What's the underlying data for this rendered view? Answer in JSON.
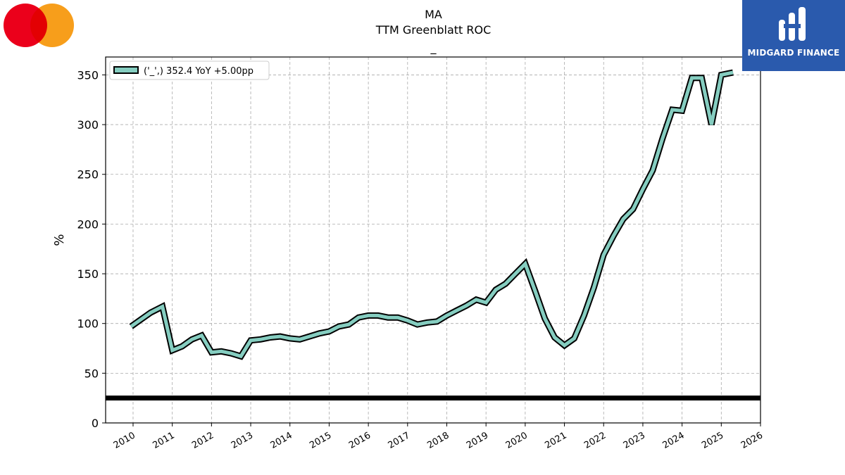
{
  "header": {
    "ticker": "MA",
    "subtitle": "TTM Greenblatt ROC",
    "underscore": "_"
  },
  "brand": {
    "name": "MIDGARD FINANCE",
    "box_color": "#2a5aad",
    "logo_icon": "midgard-finance-logo-icon"
  },
  "company_logo": {
    "icon": "mastercard-logo-icon",
    "left_color": "#eb001b",
    "right_color": "#f79e1b"
  },
  "chart_data": {
    "type": "line",
    "title": "",
    "xlabel": "",
    "ylabel": "%",
    "xlim": [
      2009.3,
      2026.0
    ],
    "ylim": [
      0,
      368
    ],
    "x_ticks": [
      "2010",
      "2011",
      "2012",
      "2013",
      "2014",
      "2015",
      "2016",
      "2017",
      "2018",
      "2019",
      "2020",
      "2021",
      "2022",
      "2023",
      "2024",
      "2025",
      "2026"
    ],
    "y_ticks": [
      "0",
      "50",
      "100",
      "150",
      "200",
      "250",
      "300",
      "350"
    ],
    "grid": true,
    "legend_position": "top-left",
    "reference_line": {
      "y": 25,
      "color": "#000000"
    },
    "series": [
      {
        "name": "('_',) 352.4 YoY +5.00pp",
        "color": "#85cdc0",
        "edge_color": "#000000",
        "x": [
          2009.95,
          2010.2,
          2010.45,
          2010.75,
          2011.0,
          2011.25,
          2011.5,
          2011.75,
          2012.0,
          2012.25,
          2012.5,
          2012.75,
          2013.0,
          2013.25,
          2013.5,
          2013.75,
          2014.0,
          2014.25,
          2014.5,
          2014.75,
          2015.0,
          2015.25,
          2015.5,
          2015.75,
          2016.0,
          2016.25,
          2016.5,
          2016.75,
          2017.0,
          2017.25,
          2017.5,
          2017.75,
          2018.0,
          2018.25,
          2018.5,
          2018.75,
          2019.0,
          2019.25,
          2019.5,
          2019.75,
          2020.0,
          2020.25,
          2020.5,
          2020.75,
          2021.0,
          2021.25,
          2021.5,
          2021.75,
          2022.0,
          2022.25,
          2022.5,
          2022.75,
          2023.0,
          2023.25,
          2023.5,
          2023.75,
          2024.0,
          2024.25,
          2024.5,
          2024.75,
          2025.0,
          2025.3
        ],
        "values": [
          97,
          104,
          111,
          117,
          73,
          77,
          84,
          88,
          71,
          72,
          70,
          67,
          83,
          84,
          86,
          87,
          85,
          84,
          87,
          90,
          92,
          97,
          99,
          106,
          108,
          108,
          106,
          106,
          103,
          99,
          101,
          102,
          108,
          113,
          118,
          124,
          121,
          134,
          140,
          150,
          160,
          133,
          105,
          86,
          78,
          85,
          108,
          136,
          169,
          188,
          205,
          215,
          235,
          254,
          286,
          315,
          314,
          347,
          347,
          300,
          350,
          352.4
        ]
      }
    ]
  }
}
